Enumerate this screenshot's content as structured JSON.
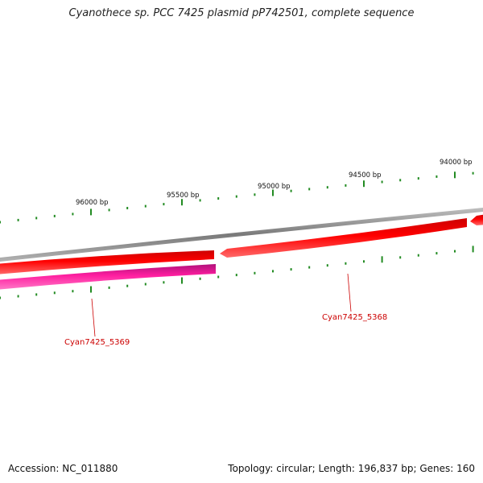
{
  "title": "Cyanothece sp. PCC 7425 plasmid pP742501, complete sequence",
  "footer": {
    "accession": "Accession: NC_011880",
    "summary": "Topology: circular; Length: 196,837 bp; Genes: 160"
  },
  "ticks": [
    {
      "label": "96000 bp"
    },
    {
      "label": "95500 bp"
    },
    {
      "label": "95000 bp"
    },
    {
      "label": "94500 bp"
    },
    {
      "label": "94000 bp"
    }
  ],
  "genes": [
    {
      "name": "Cyan7425_5369",
      "color": "#ff1fa0"
    },
    {
      "name": "Cyan7425_5368",
      "color": "#ff0000"
    }
  ],
  "colors": {
    "backbone": "#8a8a8a",
    "tick": "#228b22",
    "gene_label": "#cc0000"
  }
}
